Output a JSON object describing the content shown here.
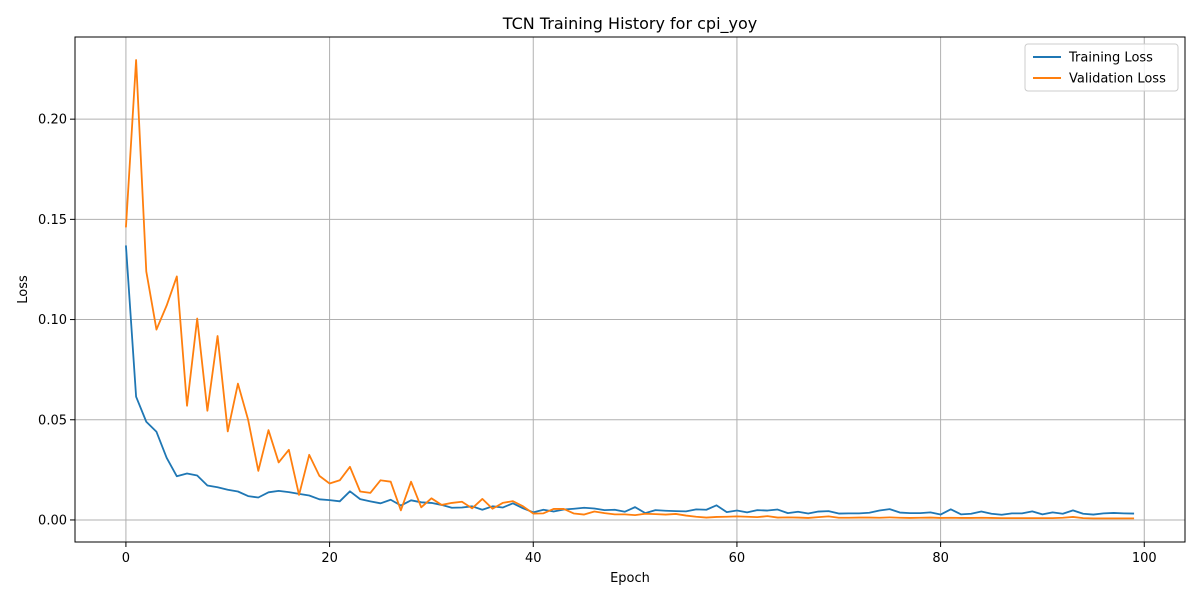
{
  "chart_data": {
    "type": "line",
    "title": "TCN Training History for cpi_yoy",
    "xlabel": "Epoch",
    "ylabel": "Loss",
    "xlim": [
      -5,
      104
    ],
    "ylim": [
      -0.011,
      0.241
    ],
    "xticks": [
      0,
      20,
      40,
      60,
      80,
      100
    ],
    "xtick_labels": [
      "0",
      "20",
      "40",
      "60",
      "80",
      "100"
    ],
    "yticks": [
      0.0,
      0.05,
      0.1,
      0.15,
      0.2
    ],
    "ytick_labels": [
      "0.00",
      "0.05",
      "0.10",
      "0.15",
      "0.20"
    ],
    "grid": true,
    "legend_position": "top-right",
    "series": [
      {
        "name": "Training Loss",
        "color": "#1f77b4",
        "values": [
          0.137,
          0.0615,
          0.049,
          0.044,
          0.031,
          0.0218,
          0.0232,
          0.0222,
          0.0172,
          0.0163,
          0.0151,
          0.0142,
          0.0119,
          0.0112,
          0.0138,
          0.0145,
          0.0139,
          0.013,
          0.0122,
          0.0103,
          0.0099,
          0.0093,
          0.0143,
          0.0104,
          0.0093,
          0.0083,
          0.0101,
          0.0072,
          0.0098,
          0.0088,
          0.0085,
          0.0075,
          0.0061,
          0.0062,
          0.0068,
          0.0051,
          0.0068,
          0.0062,
          0.0083,
          0.0058,
          0.0038,
          0.0051,
          0.0042,
          0.0052,
          0.0056,
          0.0061,
          0.0057,
          0.0049,
          0.0051,
          0.0041,
          0.0064,
          0.0034,
          0.0049,
          0.0046,
          0.0044,
          0.0043,
          0.0053,
          0.0051,
          0.0073,
          0.0039,
          0.0047,
          0.0038,
          0.0049,
          0.0047,
          0.0052,
          0.0034,
          0.0041,
          0.0032,
          0.0042,
          0.0044,
          0.0032,
          0.0033,
          0.0033,
          0.0036,
          0.0047,
          0.0054,
          0.0037,
          0.0034,
          0.0034,
          0.0038,
          0.0027,
          0.0053,
          0.0028,
          0.0031,
          0.0042,
          0.0031,
          0.0026,
          0.0033,
          0.0033,
          0.0043,
          0.0028,
          0.0038,
          0.0031,
          0.0048,
          0.0031,
          0.0027,
          0.0033,
          0.0035,
          0.0033,
          0.0032
        ]
      },
      {
        "name": "Validation Loss",
        "color": "#ff7f0e",
        "values": [
          0.146,
          0.2295,
          0.124,
          0.095,
          0.107,
          0.1215,
          0.057,
          0.1005,
          0.0545,
          0.0918,
          0.0442,
          0.068,
          0.05,
          0.0245,
          0.0448,
          0.0287,
          0.035,
          0.0125,
          0.0325,
          0.022,
          0.0182,
          0.0198,
          0.0265,
          0.0142,
          0.0135,
          0.0198,
          0.0191,
          0.0048,
          0.0191,
          0.0063,
          0.0108,
          0.0075,
          0.0085,
          0.0091,
          0.0058,
          0.0105,
          0.0056,
          0.0085,
          0.0094,
          0.0068,
          0.0032,
          0.0033,
          0.0055,
          0.0055,
          0.0032,
          0.0027,
          0.0042,
          0.0034,
          0.0028,
          0.0028,
          0.0024,
          0.0031,
          0.0029,
          0.0027,
          0.003,
          0.0022,
          0.0016,
          0.0012,
          0.0015,
          0.0016,
          0.0018,
          0.0016,
          0.0014,
          0.0019,
          0.0012,
          0.0013,
          0.0012,
          0.001,
          0.0014,
          0.0018,
          0.0011,
          0.0011,
          0.0012,
          0.0012,
          0.0011,
          0.0013,
          0.0011,
          0.001,
          0.0011,
          0.0012,
          0.001,
          0.0011,
          0.001,
          0.001,
          0.0011,
          0.001,
          0.0009,
          0.0009,
          0.0009,
          0.0009,
          0.0009,
          0.0009,
          0.0011,
          0.0015,
          0.0009,
          0.0008,
          0.0008,
          0.0008,
          0.0008,
          0.0008
        ]
      }
    ]
  }
}
